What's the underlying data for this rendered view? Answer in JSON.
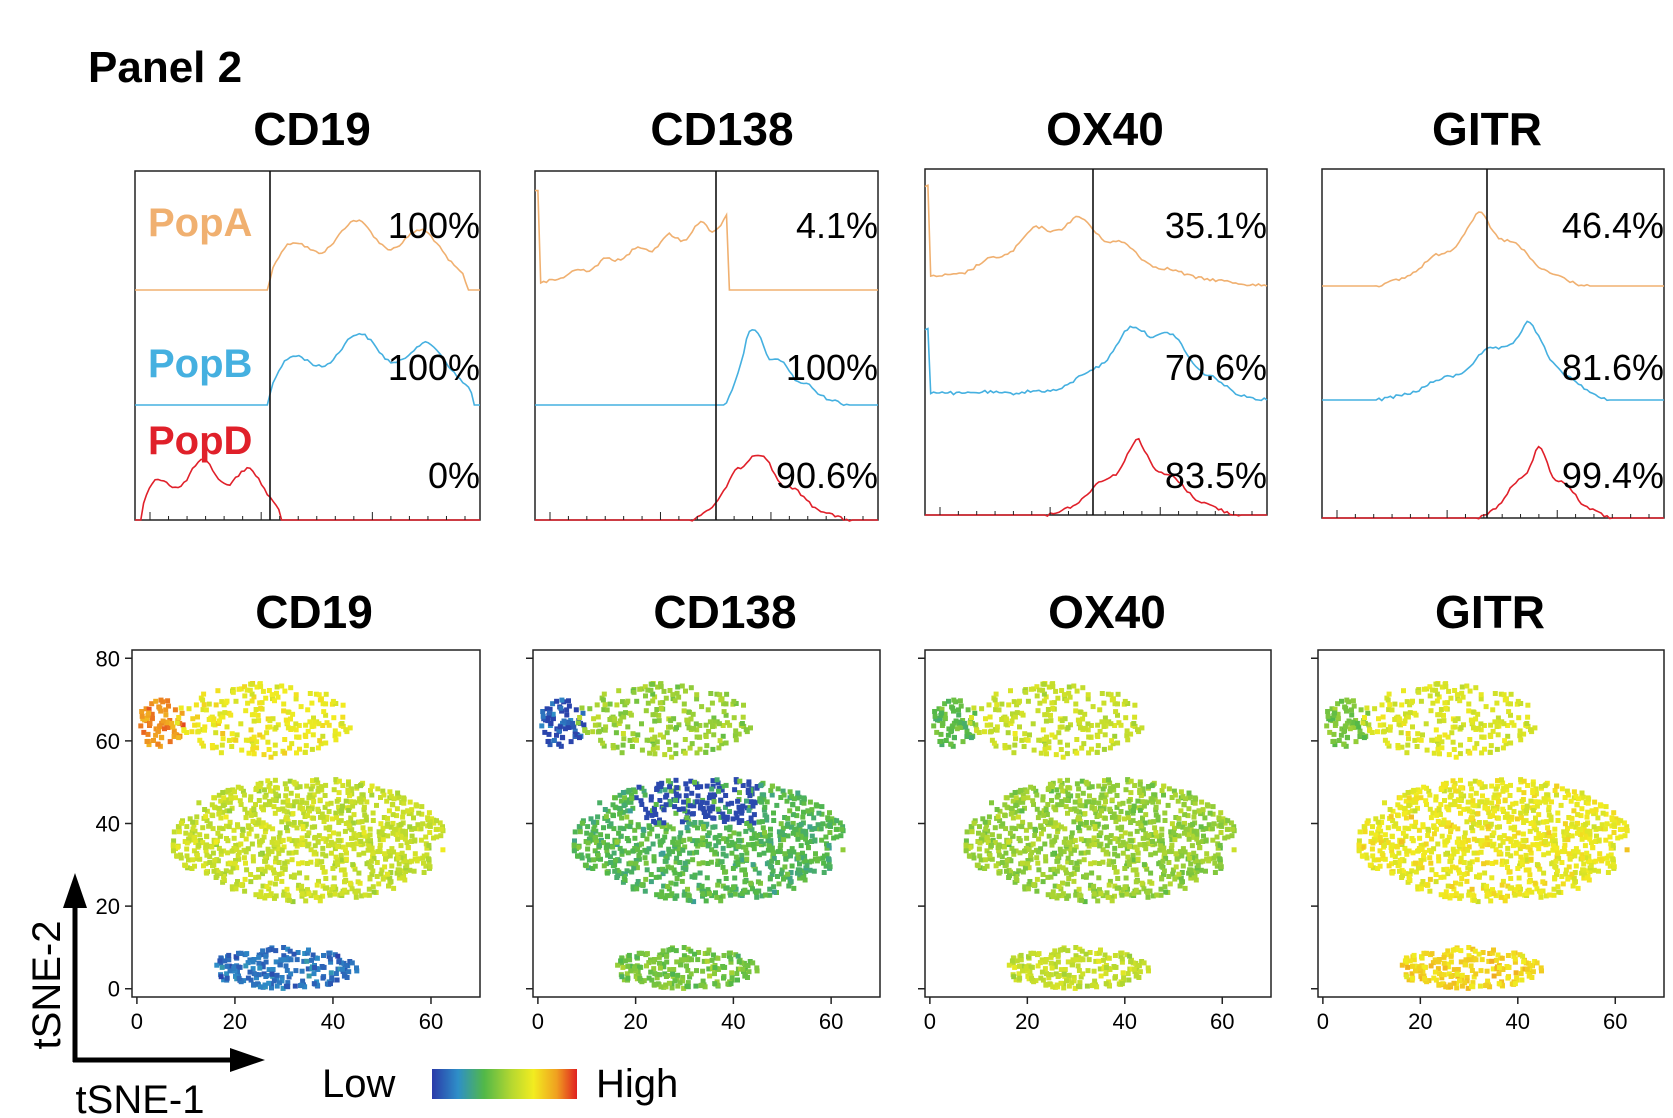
{
  "figure": {
    "panel_label": "Panel 2",
    "legend": {
      "low": "Low",
      "high": "High"
    },
    "colors": {
      "PopA": "#f0b070",
      "PopB": "#45b0e0",
      "PopD": "#e0202a",
      "gradient": [
        "#2a3aa8",
        "#2e8fc8",
        "#52b848",
        "#b6d830",
        "#f2ec20",
        "#f0a020",
        "#e02020"
      ]
    }
  },
  "chart_data": [
    {
      "type": "histogram",
      "title": "CD19",
      "populations": [
        "PopA",
        "PopB",
        "PopD"
      ],
      "percent_positive": {
        "PopA": "100%",
        "PopB": "100%",
        "PopD": "0%"
      },
      "gate": "vertical line"
    },
    {
      "type": "histogram",
      "title": "CD138",
      "populations": [
        "PopA",
        "PopB",
        "PopD"
      ],
      "percent_positive": {
        "PopA": "4.1%",
        "PopB": "100%",
        "PopD": "90.6%"
      },
      "gate": "vertical line"
    },
    {
      "type": "histogram",
      "title": "OX40",
      "populations": [
        "PopA",
        "PopB",
        "PopD"
      ],
      "percent_positive": {
        "PopA": "35.1%",
        "PopB": "70.6%",
        "PopD": "83.5%"
      },
      "gate": "vertical line"
    },
    {
      "type": "histogram",
      "title": "GITR",
      "populations": [
        "PopA",
        "PopB",
        "PopD"
      ],
      "percent_positive": {
        "PopA": "46.4%",
        "PopB": "81.6%",
        "PopD": "99.4%"
      },
      "gate": "vertical line"
    },
    {
      "type": "scatter",
      "title": "CD19",
      "xlabel": "tSNE-1",
      "ylabel": "tSNE-2",
      "xlim": [
        -1,
        70
      ],
      "ylim": [
        -2,
        82
      ],
      "xticks": [
        0,
        20,
        40,
        60
      ],
      "yticks": [
        0,
        20,
        40,
        60,
        80
      ],
      "intensity_by_cluster": {
        "left_top": 0.85,
        "top": 0.65,
        "big": 0.55,
        "bottom": 0.12
      }
    },
    {
      "type": "scatter",
      "title": "CD138",
      "xlabel": "tSNE-1",
      "ylabel": "tSNE-2",
      "xlim": [
        -1,
        70
      ],
      "ylim": [
        -2,
        82
      ],
      "xticks": [
        0,
        20,
        40,
        60
      ],
      "yticks": [
        0,
        20,
        40,
        60,
        80
      ],
      "intensity_by_cluster": {
        "left_top": 0.12,
        "top": 0.45,
        "big": 0.33,
        "bottom": 0.4
      }
    },
    {
      "type": "scatter",
      "title": "OX40",
      "xlabel": "tSNE-1",
      "ylabel": "tSNE-2",
      "xlim": [
        -1,
        70
      ],
      "ylim": [
        -2,
        82
      ],
      "xticks": [
        0,
        20,
        40,
        60
      ],
      "yticks": [
        0,
        20,
        40,
        60,
        80
      ],
      "intensity_by_cluster": {
        "left_top": 0.35,
        "top": 0.55,
        "big": 0.45,
        "bottom": 0.55
      }
    },
    {
      "type": "scatter",
      "title": "GITR",
      "xlabel": "tSNE-1",
      "ylabel": "tSNE-2",
      "xlim": [
        -1,
        70
      ],
      "ylim": [
        -2,
        82
      ],
      "xticks": [
        0,
        20,
        40,
        60
      ],
      "yticks": [
        0,
        20,
        40,
        60,
        80
      ],
      "intensity_by_cluster": {
        "left_top": 0.4,
        "top": 0.6,
        "big": 0.65,
        "bottom": 0.72
      }
    }
  ]
}
